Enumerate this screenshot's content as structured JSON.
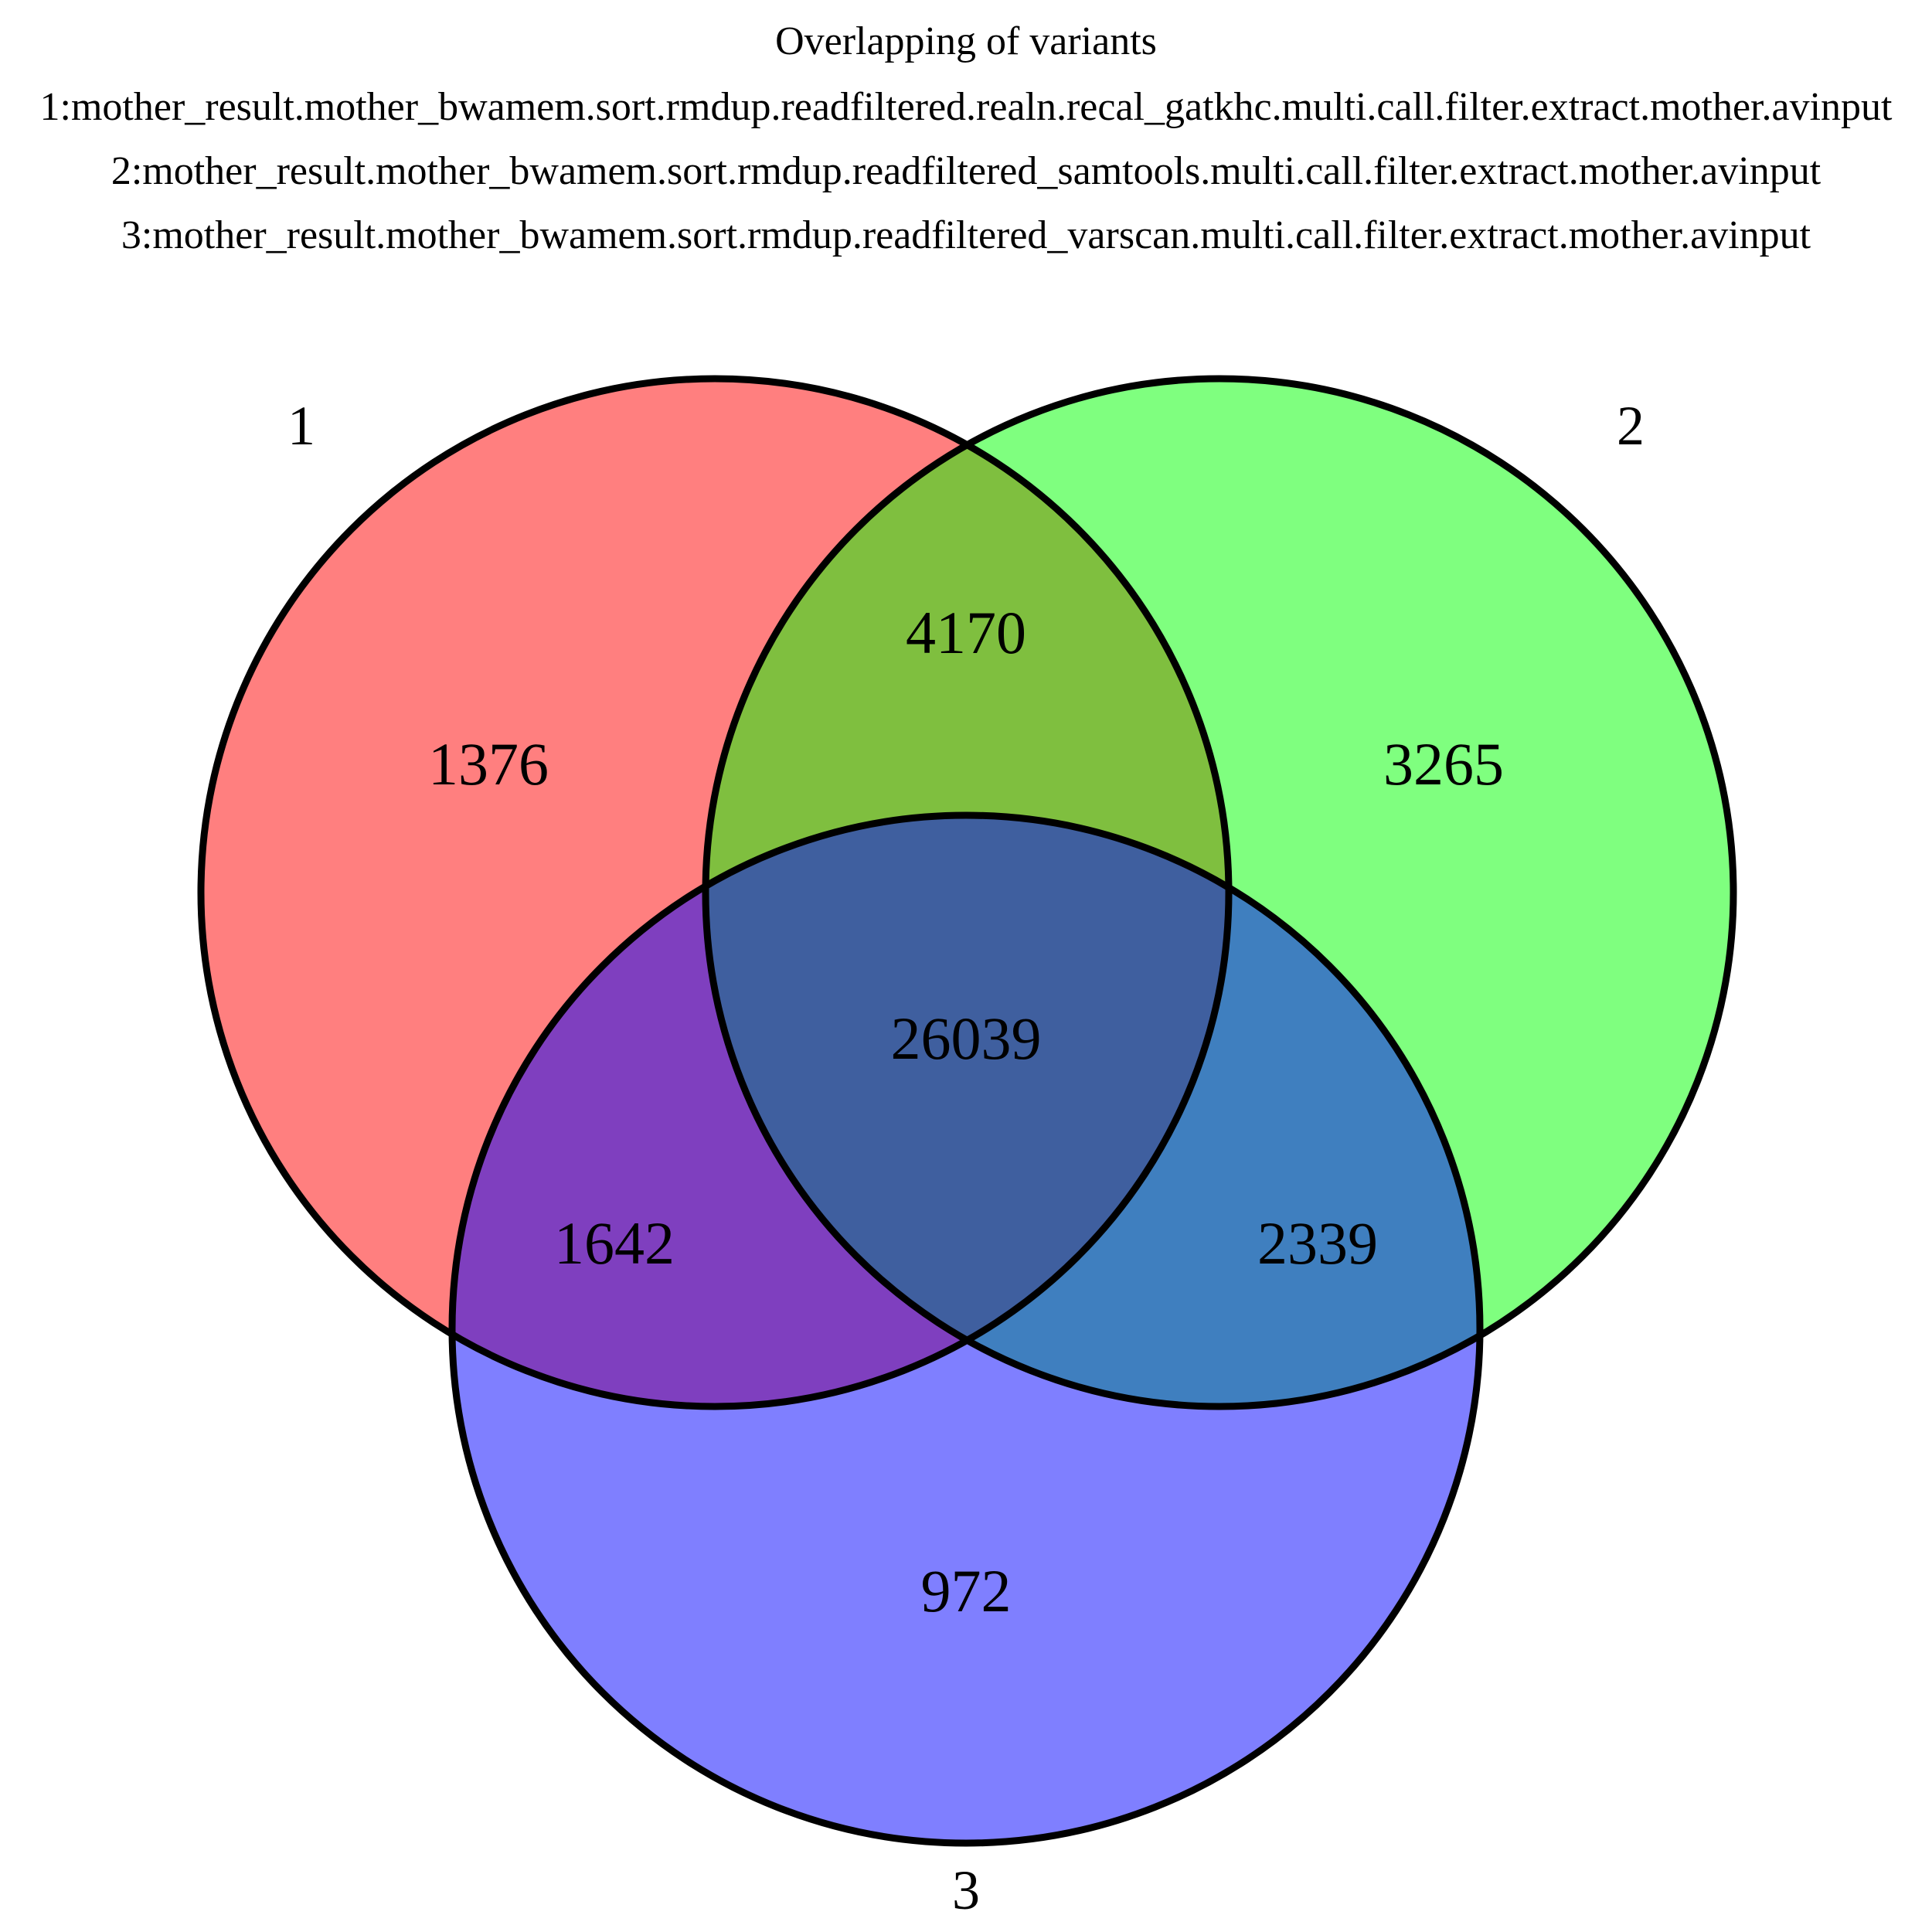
{
  "title": "Overlapping of variants",
  "set_descriptions": [
    "1:mother_result.mother_bwamem.sort.rmdup.readfiltered.realn.recal_gatkhc.multi.call.filter.extract.mother.avinput",
    "2:mother_result.mother_bwamem.sort.rmdup.readfiltered_samtools.multi.call.filter.extract.mother.avinput",
    "3:mother_result.mother_bwamem.sort.rmdup.readfiltered_varscan.multi.call.filter.extract.mother.avinput"
  ],
  "sets": [
    {
      "label": "1",
      "color": "#ff0000",
      "fill_opacity": 0.5
    },
    {
      "label": "2",
      "color": "#00ff00",
      "fill_opacity": 0.5
    },
    {
      "label": "3",
      "color": "#0000ff",
      "fill_opacity": 0.5
    }
  ],
  "regions": {
    "only_1": "1376",
    "only_2": "3265",
    "only_3": "972",
    "1_and_2": "4170",
    "1_and_3": "1642",
    "2_and_3": "2339",
    "1_2_3": "26039"
  },
  "outline_color": "#000000",
  "text_color": "#000000"
}
